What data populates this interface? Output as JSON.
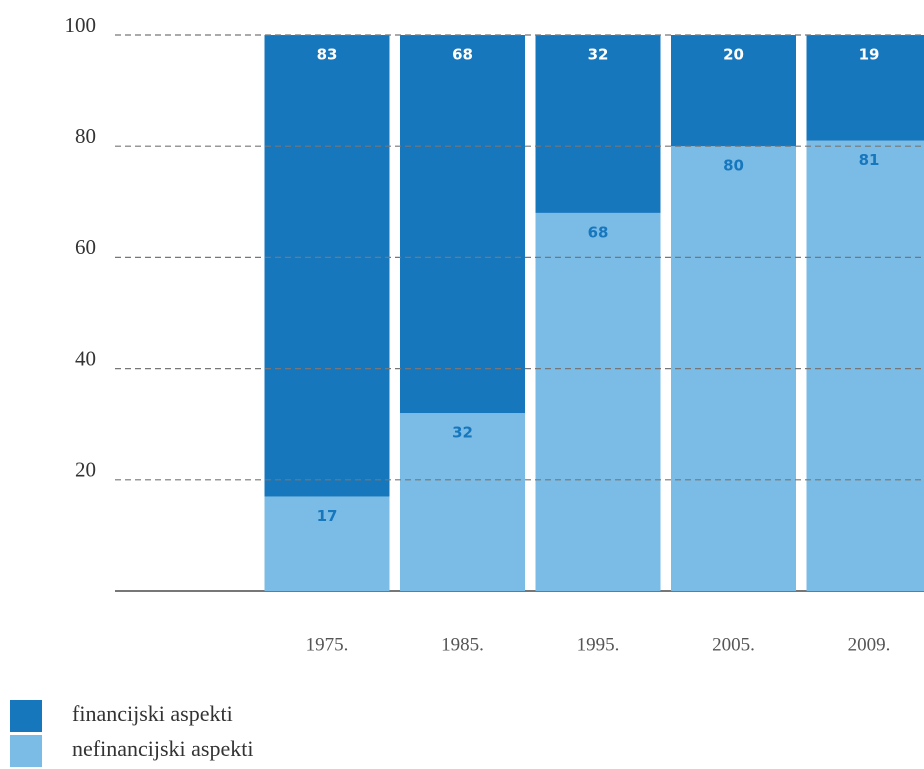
{
  "chart_data": {
    "type": "stacked_bar",
    "categories": [
      "1975.",
      "1985.",
      "1995.",
      "2005.",
      "2009."
    ],
    "series": [
      {
        "name": "financijski aspekti",
        "color": "#1777bd",
        "values": [
          83,
          68,
          32,
          20,
          19
        ]
      },
      {
        "name": "nefinancijski aspekti",
        "color": "#7bbce6",
        "values": [
          17,
          32,
          68,
          80,
          81
        ]
      }
    ],
    "ylim": [
      0,
      100
    ],
    "yticks": [
      20,
      40,
      60,
      80,
      100
    ],
    "grid": true
  }
}
